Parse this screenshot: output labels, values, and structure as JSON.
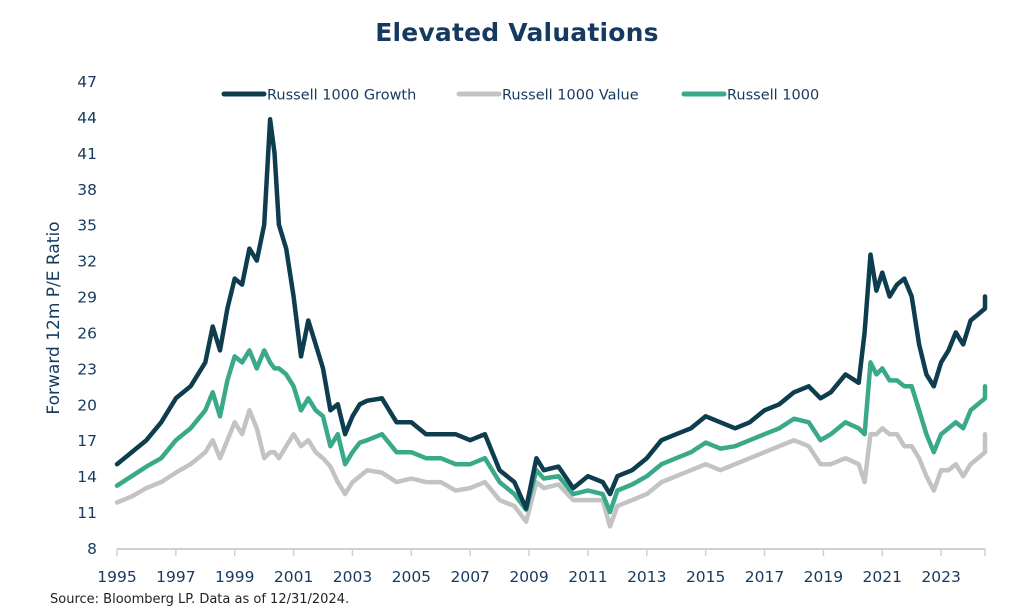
{
  "chart_data": {
    "type": "line",
    "title": "Elevated Valuations",
    "xlabel": "",
    "ylabel": "Forward 12m P/E Ratio",
    "xlim": [
      1995,
      2025
    ],
    "ylim": [
      8,
      47
    ],
    "yticks": [
      8,
      11,
      14,
      17,
      20,
      23,
      26,
      29,
      32,
      35,
      38,
      41,
      44,
      47
    ],
    "xticks": [
      1995,
      1997,
      1999,
      2001,
      2003,
      2005,
      2007,
      2009,
      2011,
      2013,
      2015,
      2017,
      2019,
      2021,
      2023
    ],
    "grid": false,
    "legend_position": "top",
    "x": [
      1995.0,
      1995.5,
      1996.0,
      1996.5,
      1997.0,
      1997.5,
      1998.0,
      1998.25,
      1998.5,
      1998.75,
      1999.0,
      1999.25,
      1999.5,
      1999.75,
      2000.0,
      2000.2,
      2000.35,
      2000.5,
      2000.75,
      2001.0,
      2001.25,
      2001.5,
      2001.75,
      2002.0,
      2002.25,
      2002.5,
      2002.75,
      2003.0,
      2003.25,
      2003.5,
      2004.0,
      2004.5,
      2005.0,
      2005.5,
      2006.0,
      2006.5,
      2007.0,
      2007.5,
      2008.0,
      2008.5,
      2008.9,
      2009.25,
      2009.5,
      2010.0,
      2010.5,
      2011.0,
      2011.5,
      2011.75,
      2012.0,
      2012.5,
      2013.0,
      2013.5,
      2014.0,
      2014.5,
      2015.0,
      2015.5,
      2016.0,
      2016.5,
      2017.0,
      2017.5,
      2018.0,
      2018.5,
      2018.9,
      2019.25,
      2019.75,
      2020.2,
      2020.4,
      2020.6,
      2020.8,
      2021.0,
      2021.25,
      2021.5,
      2021.75,
      2022.0,
      2022.25,
      2022.5,
      2022.75,
      2023.0,
      2023.25,
      2023.5,
      2023.75,
      2024.0,
      2024.25,
      2024.5,
      2024.75,
      2025.0
    ],
    "series": [
      {
        "name": "Russell 1000 Growth",
        "color": "#0d3d4f",
        "values": [
          15.0,
          16.0,
          17.0,
          18.5,
          20.5,
          21.5,
          23.5,
          26.5,
          24.5,
          28.0,
          30.5,
          30.0,
          33.0,
          32.0,
          35.0,
          43.8,
          41.0,
          35.0,
          33.0,
          29.0,
          24.0,
          27.0,
          25.0,
          23.0,
          19.5,
          20.0,
          17.5,
          19.0,
          20.0,
          20.3,
          20.5,
          18.5,
          18.5,
          17.5,
          17.5,
          17.5,
          17.0,
          17.5,
          14.5,
          13.5,
          11.3,
          15.5,
          14.5,
          14.8,
          13.0,
          14.0,
          13.5,
          12.5,
          14.0,
          14.5,
          15.5,
          17.0,
          17.5,
          18.0,
          19.0,
          18.5,
          18.0,
          18.5,
          19.5,
          20.0,
          21.0,
          21.5,
          20.5,
          21.0,
          22.5,
          21.8,
          26.0,
          32.5,
          29.5,
          31.0,
          29.0,
          30.0,
          30.5,
          29.0,
          25.0,
          22.5,
          21.5,
          23.5,
          24.5,
          26.0,
          25.0,
          27.0,
          27.5,
          28.0,
          29.0,
          28.8
        ]
      },
      {
        "name": "Russell 1000 Value",
        "color": "#c3c3c3",
        "values": [
          11.8,
          12.3,
          13.0,
          13.5,
          14.3,
          15.0,
          16.0,
          17.0,
          15.5,
          17.0,
          18.5,
          17.5,
          19.5,
          18.0,
          15.5,
          16.0,
          16.0,
          15.5,
          16.5,
          17.5,
          16.5,
          17.0,
          16.0,
          15.5,
          14.8,
          13.5,
          12.5,
          13.5,
          14.0,
          14.5,
          14.3,
          13.5,
          13.8,
          13.5,
          13.5,
          12.8,
          13.0,
          13.5,
          12.0,
          11.5,
          10.2,
          13.5,
          13.0,
          13.3,
          12.0,
          12.0,
          12.0,
          9.8,
          11.5,
          12.0,
          12.5,
          13.5,
          14.0,
          14.5,
          15.0,
          14.5,
          15.0,
          15.5,
          16.0,
          16.5,
          17.0,
          16.5,
          15.0,
          15.0,
          15.5,
          15.0,
          13.5,
          17.5,
          17.5,
          18.0,
          17.5,
          17.5,
          16.5,
          16.5,
          15.5,
          14.0,
          12.8,
          14.5,
          14.5,
          15.0,
          14.0,
          15.0,
          15.5,
          16.0,
          17.5,
          16.5
        ]
      },
      {
        "name": "Russell 1000",
        "color": "#3aa98a",
        "values": [
          13.2,
          14.0,
          14.8,
          15.5,
          17.0,
          18.0,
          19.5,
          21.0,
          19.0,
          22.0,
          24.0,
          23.5,
          24.5,
          23.0,
          24.5,
          23.5,
          23.0,
          23.0,
          22.5,
          21.5,
          19.5,
          20.5,
          19.5,
          19.0,
          16.5,
          17.5,
          15.0,
          16.0,
          16.8,
          17.0,
          17.5,
          16.0,
          16.0,
          15.5,
          15.5,
          15.0,
          15.0,
          15.5,
          13.5,
          12.5,
          11.2,
          14.5,
          13.8,
          14.0,
          12.5,
          12.8,
          12.5,
          11.0,
          12.8,
          13.3,
          14.0,
          15.0,
          15.5,
          16.0,
          16.8,
          16.3,
          16.5,
          17.0,
          17.5,
          18.0,
          18.8,
          18.5,
          17.0,
          17.5,
          18.5,
          18.0,
          17.5,
          23.5,
          22.5,
          23.0,
          22.0,
          22.0,
          21.5,
          21.5,
          19.5,
          17.5,
          16.0,
          17.5,
          18.0,
          18.5,
          18.0,
          19.5,
          20.0,
          20.5,
          21.5,
          21.5
        ]
      }
    ]
  },
  "source_note": "Source: Bloomberg LP. Data as of 12/31/2024."
}
